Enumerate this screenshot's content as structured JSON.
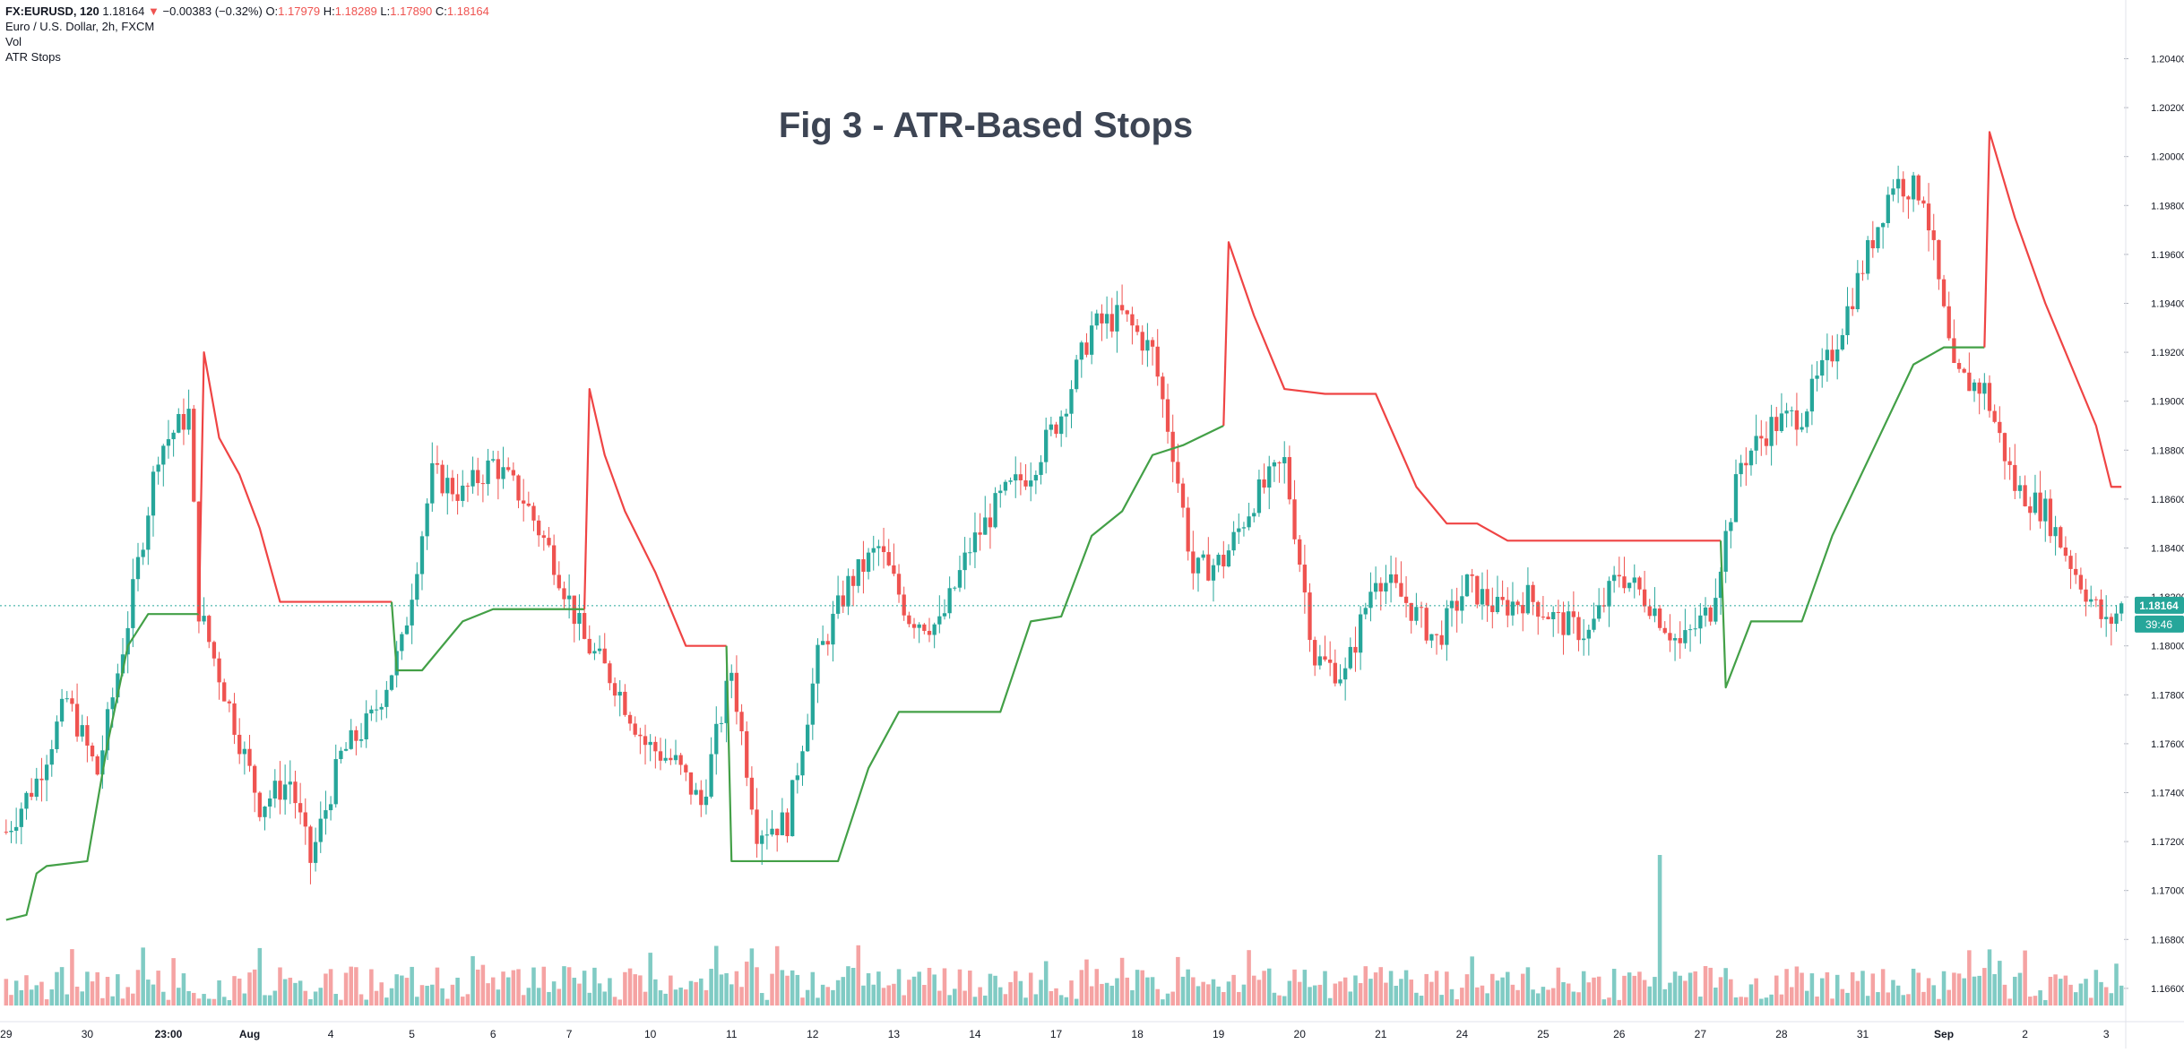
{
  "header": {
    "symbol": "FX:EURUSD, 120",
    "last": "1.18164",
    "change": "−0.00383 (−0.32%)",
    "open_label": "O:",
    "open": "1.17979",
    "high_label": "H:",
    "high": "1.18289",
    "low_label": "L:",
    "low": "1.17890",
    "close_label": "C:",
    "close": "1.18164",
    "down_arrow": "▼"
  },
  "legend": {
    "instrument": "Euro / U.S. Dollar, 2h, FXCM",
    "vol": "Vol",
    "atr": "ATR Stops"
  },
  "title": "Fig 3 - ATR-Based Stops",
  "price_tag": "1.18164",
  "countdown": "39:46",
  "colors": {
    "up": "#26a69a",
    "down": "#ef5350",
    "vol_up": "#80cbc4",
    "vol_down": "#f5a3a3",
    "stop_long": "#43a047",
    "stop_short": "#ef4444",
    "axis_text": "#131722",
    "title": "#3d4554"
  },
  "chart_data": {
    "type": "candlestick",
    "title": "Fig 3 - ATR-Based Stops",
    "y_axis": {
      "ticks": [
        "1.20400",
        "1.20200",
        "1.20000",
        "1.19800",
        "1.19600",
        "1.19400",
        "1.19200",
        "1.19000",
        "1.18800",
        "1.18600",
        "1.18400",
        "1.18200",
        "1.18000",
        "1.17800",
        "1.17600",
        "1.17400",
        "1.17200",
        "1.17000",
        "1.16800",
        "1.16600"
      ],
      "range": [
        1.1653,
        1.2053
      ]
    },
    "x_axis": {
      "tick_labels": [
        "29",
        "30",
        "23:00",
        "Aug",
        "4",
        "5",
        "6",
        "7",
        "10",
        "11",
        "12",
        "13",
        "14",
        "17",
        "18",
        "19",
        "20",
        "21",
        "24",
        "25",
        "26",
        "27",
        "28",
        "31",
        "Sep",
        "2",
        "3"
      ]
    },
    "last_price": 1.18164,
    "close_anchors": [
      [
        0,
        1.1724
      ],
      [
        6,
        1.1745
      ],
      [
        12,
        1.1778
      ],
      [
        18,
        1.1748
      ],
      [
        24,
        1.181
      ],
      [
        30,
        1.188
      ],
      [
        36,
        1.1895
      ],
      [
        38,
        1.1815
      ],
      [
        44,
        1.1775
      ],
      [
        50,
        1.1735
      ],
      [
        56,
        1.1745
      ],
      [
        60,
        1.1712
      ],
      [
        66,
        1.1755
      ],
      [
        72,
        1.177
      ],
      [
        78,
        1.18
      ],
      [
        84,
        1.187
      ],
      [
        90,
        1.1862
      ],
      [
        96,
        1.1875
      ],
      [
        102,
        1.186
      ],
      [
        108,
        1.1835
      ],
      [
        114,
        1.1802
      ],
      [
        120,
        1.1785
      ],
      [
        126,
        1.176
      ],
      [
        132,
        1.1752
      ],
      [
        137,
        1.1735
      ],
      [
        143,
        1.179
      ],
      [
        148,
        1.1725
      ],
      [
        154,
        1.1728
      ],
      [
        160,
        1.1795
      ],
      [
        166,
        1.1825
      ],
      [
        172,
        1.184
      ],
      [
        178,
        1.1812
      ],
      [
        184,
        1.1808
      ],
      [
        190,
        1.184
      ],
      [
        196,
        1.186
      ],
      [
        202,
        1.1872
      ],
      [
        208,
        1.1895
      ],
      [
        214,
        1.193
      ],
      [
        220,
        1.1935
      ],
      [
        226,
        1.192
      ],
      [
        230,
        1.188
      ],
      [
        234,
        1.183
      ],
      [
        240,
        1.1835
      ],
      [
        246,
        1.186
      ],
      [
        252,
        1.1875
      ],
      [
        258,
        1.1795
      ],
      [
        264,
        1.1788
      ],
      [
        270,
        1.183
      ],
      [
        276,
        1.1818
      ],
      [
        282,
        1.1802
      ],
      [
        288,
        1.1825
      ],
      [
        294,
        1.1815
      ],
      [
        300,
        1.182
      ],
      [
        306,
        1.181
      ],
      [
        312,
        1.1805
      ],
      [
        318,
        1.183
      ],
      [
        324,
        1.1818
      ],
      [
        330,
        1.18
      ],
      [
        336,
        1.1815
      ],
      [
        342,
        1.1875
      ],
      [
        348,
        1.189
      ],
      [
        354,
        1.1895
      ],
      [
        360,
        1.192
      ],
      [
        366,
        1.1955
      ],
      [
        372,
        1.199
      ],
      [
        378,
        1.1985
      ],
      [
        384,
        1.191
      ],
      [
        390,
        1.1905
      ],
      [
        396,
        1.1865
      ],
      [
        402,
        1.1855
      ],
      [
        408,
        1.183
      ],
      [
        414,
        1.1808
      ],
      [
        417,
        1.1816
      ]
    ],
    "atr_stop_anchors": [
      [
        0,
        1.1688,
        "long"
      ],
      [
        4,
        1.169,
        "long"
      ],
      [
        6,
        1.1707,
        "long"
      ],
      [
        8,
        1.171,
        "long"
      ],
      [
        16,
        1.1712,
        "long"
      ],
      [
        20,
        1.176,
        "long"
      ],
      [
        24,
        1.18,
        "long"
      ],
      [
        28,
        1.1813,
        "long"
      ],
      [
        38,
        1.1813,
        "long"
      ],
      [
        39,
        1.192,
        "short"
      ],
      [
        42,
        1.1885,
        "short"
      ],
      [
        46,
        1.187,
        "short"
      ],
      [
        50,
        1.1848,
        "short"
      ],
      [
        54,
        1.1818,
        "short"
      ],
      [
        60,
        1.1818,
        "short"
      ],
      [
        76,
        1.1818,
        "short"
      ],
      [
        77,
        1.179,
        "long"
      ],
      [
        82,
        1.179,
        "long"
      ],
      [
        90,
        1.181,
        "long"
      ],
      [
        96,
        1.1815,
        "long"
      ],
      [
        114,
        1.1815,
        "long"
      ],
      [
        115,
        1.1905,
        "short"
      ],
      [
        118,
        1.1878,
        "short"
      ],
      [
        122,
        1.1855,
        "short"
      ],
      [
        128,
        1.183,
        "short"
      ],
      [
        134,
        1.18,
        "short"
      ],
      [
        142,
        1.18,
        "short"
      ],
      [
        143,
        1.1712,
        "long"
      ],
      [
        150,
        1.1712,
        "long"
      ],
      [
        164,
        1.1712,
        "long"
      ],
      [
        170,
        1.175,
        "long"
      ],
      [
        176,
        1.1773,
        "long"
      ],
      [
        196,
        1.1773,
        "long"
      ],
      [
        202,
        1.181,
        "long"
      ],
      [
        208,
        1.1812,
        "long"
      ],
      [
        214,
        1.1845,
        "long"
      ],
      [
        220,
        1.1855,
        "long"
      ],
      [
        226,
        1.1878,
        "long"
      ],
      [
        232,
        1.1882,
        "long"
      ],
      [
        240,
        1.189,
        "long"
      ],
      [
        241,
        1.1965,
        "short"
      ],
      [
        246,
        1.1935,
        "short"
      ],
      [
        252,
        1.1905,
        "short"
      ],
      [
        260,
        1.1903,
        "short"
      ],
      [
        270,
        1.1903,
        "short"
      ],
      [
        278,
        1.1865,
        "short"
      ],
      [
        284,
        1.185,
        "short"
      ],
      [
        290,
        1.185,
        "short"
      ],
      [
        296,
        1.1843,
        "short"
      ],
      [
        338,
        1.1843,
        "short"
      ],
      [
        339,
        1.1783,
        "long"
      ],
      [
        344,
        1.181,
        "long"
      ],
      [
        354,
        1.181,
        "long"
      ],
      [
        360,
        1.1845,
        "long"
      ],
      [
        368,
        1.188,
        "long"
      ],
      [
        376,
        1.1915,
        "long"
      ],
      [
        382,
        1.1922,
        "long"
      ],
      [
        390,
        1.1922,
        "long"
      ],
      [
        391,
        1.201,
        "short"
      ],
      [
        396,
        1.1975,
        "short"
      ],
      [
        402,
        1.194,
        "short"
      ],
      [
        408,
        1.191,
        "short"
      ],
      [
        412,
        1.189,
        "short"
      ],
      [
        415,
        1.1865,
        "short"
      ],
      [
        417,
        1.1865,
        "short"
      ]
    ],
    "volume_profile": "relative per-bar volume, alternating color by candle direction; notable spike near Aug 27 session",
    "volume_spike_index": 326
  }
}
